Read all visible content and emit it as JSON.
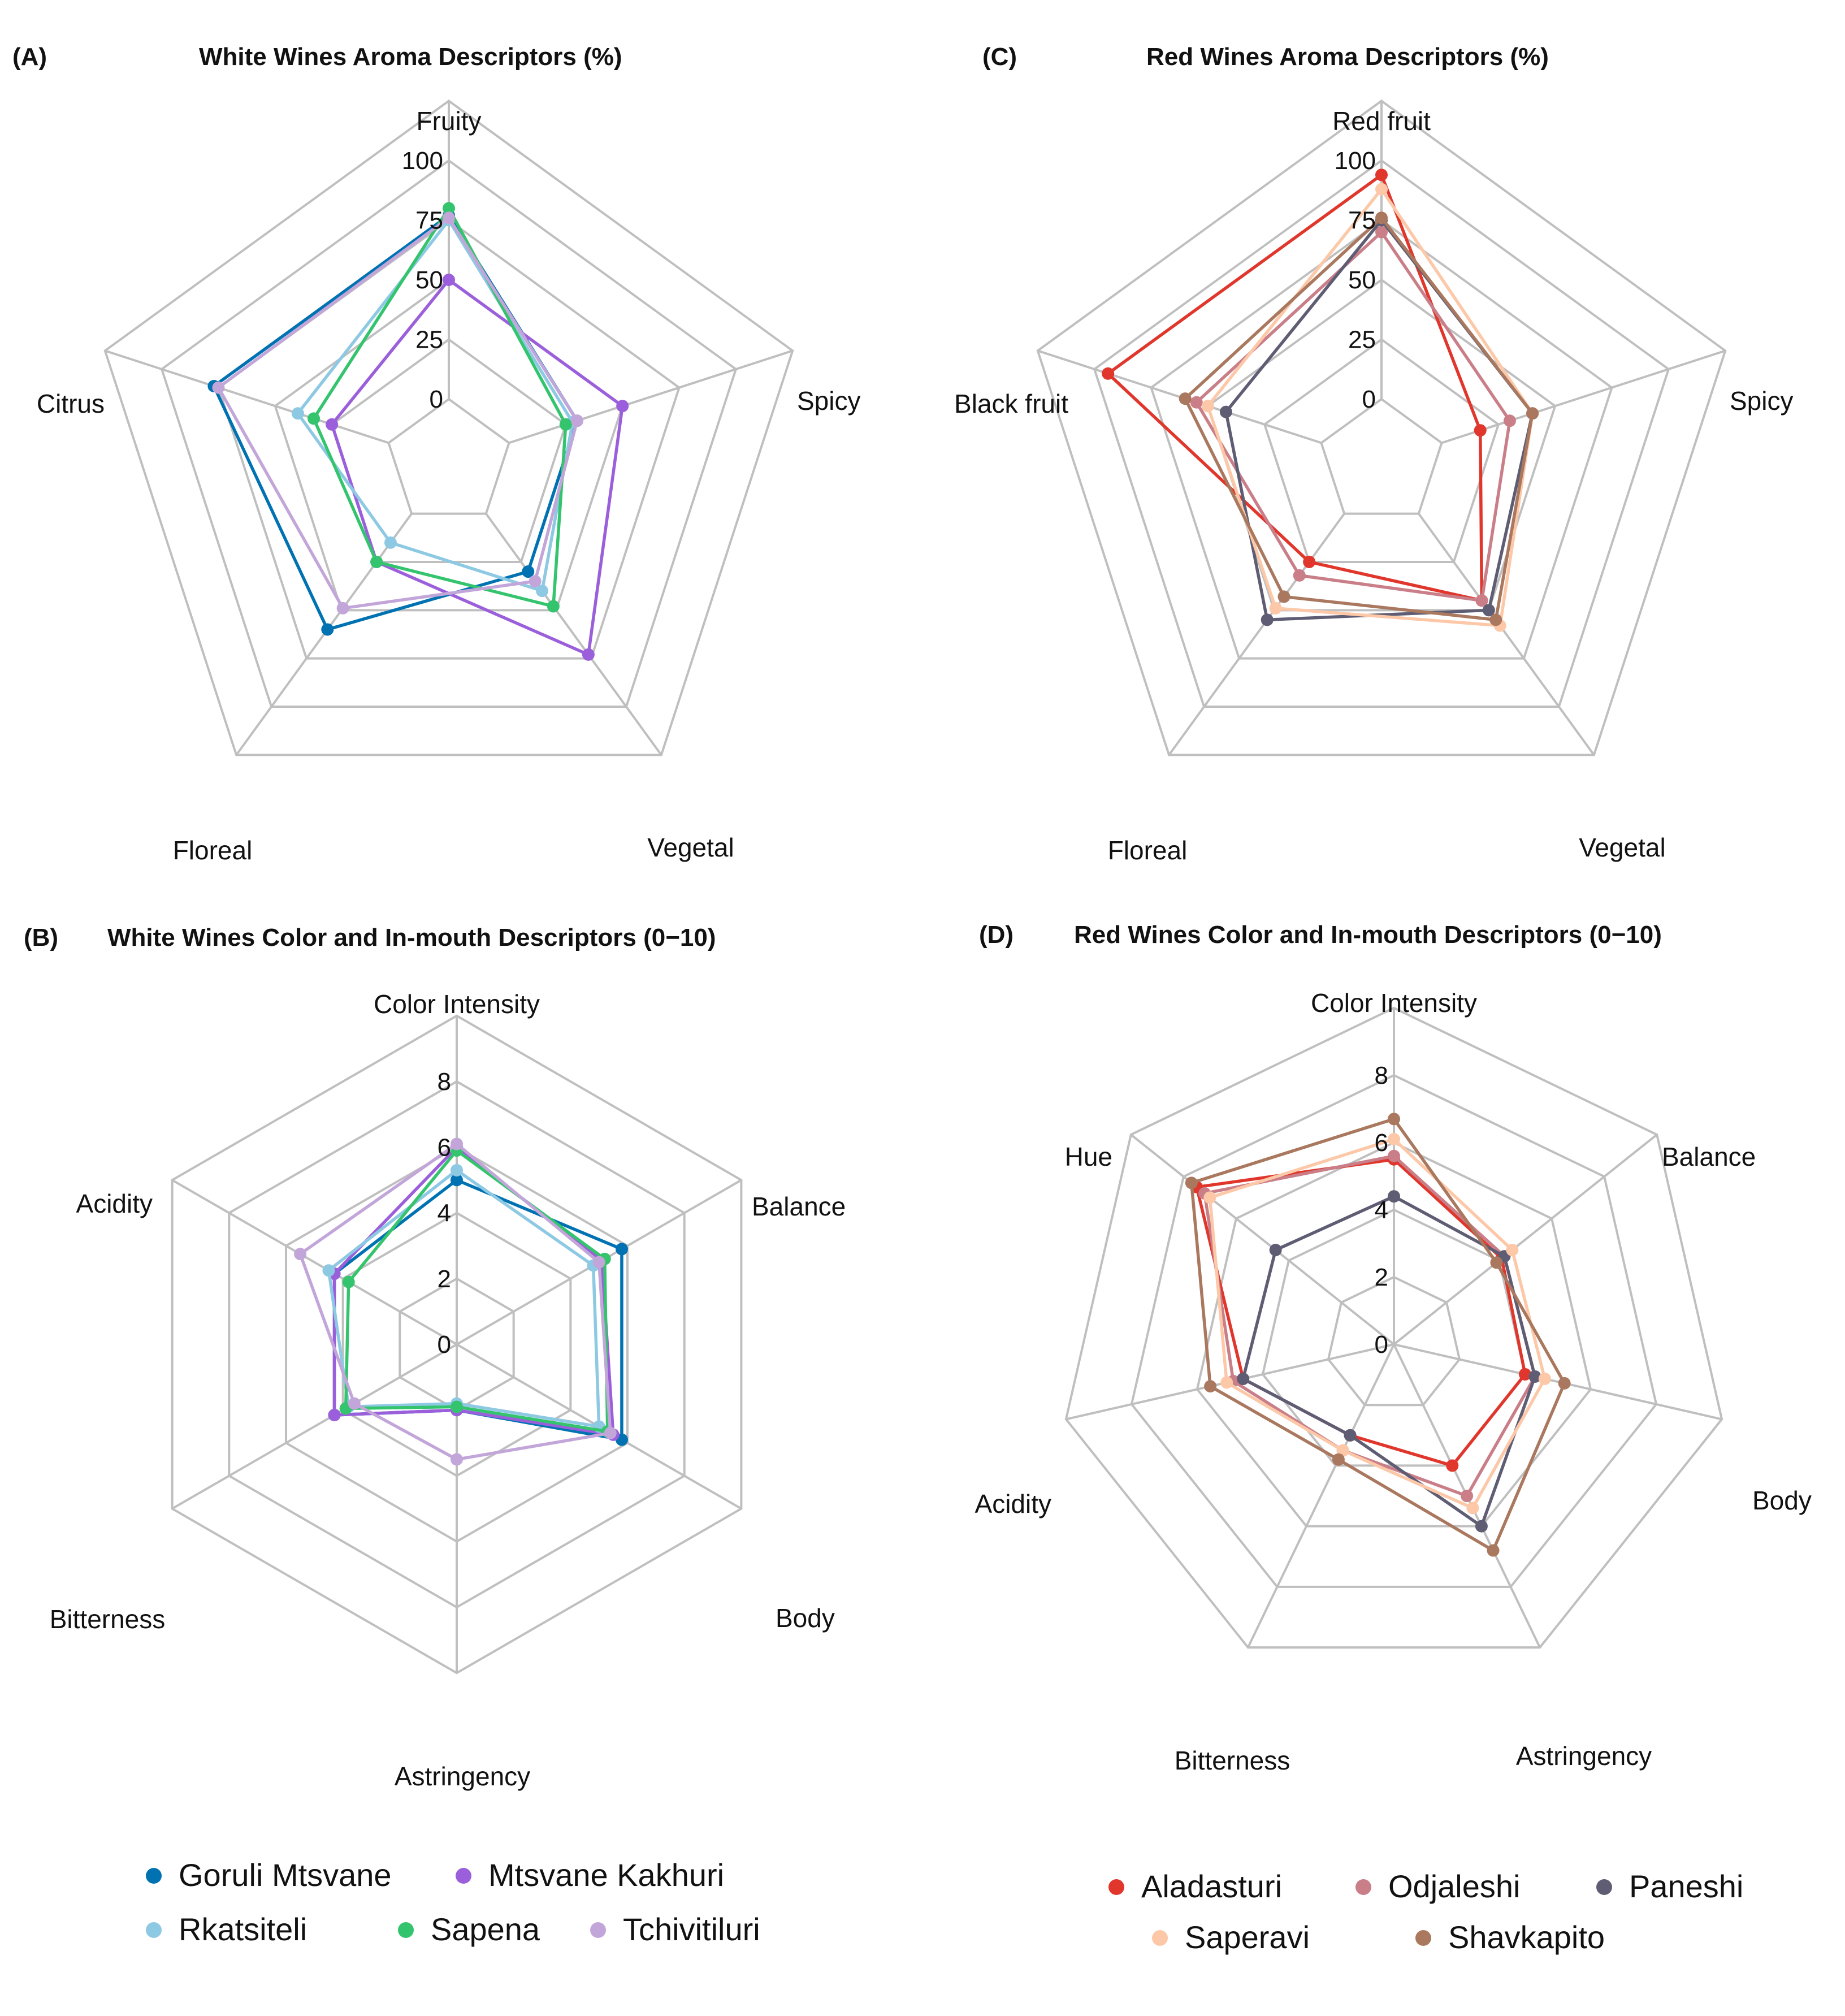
{
  "chart_data": [
    {
      "panel": "(A)",
      "type": "radar",
      "title": "White Wines Aroma Descriptors (%)",
      "axes": [
        "Fruity",
        "Spicy",
        "Vegetal",
        "Floreal",
        "Citrus"
      ],
      "ticks": [
        "0",
        "25",
        "50",
        "75",
        "100"
      ],
      "tick_values": [
        0,
        25,
        50,
        75,
        100
      ],
      "range": [
        0,
        100
      ],
      "series": [
        {
          "name": "Goruli Mtsvane",
          "color": "#0072B2",
          "values": [
            77,
            30,
            30,
            60,
            77
          ]
        },
        {
          "name": "Mtsvane Kakhuri",
          "color": "#9B5FDB",
          "values": [
            50,
            50,
            73,
            25,
            25
          ]
        },
        {
          "name": "Rkatsiteli",
          "color": "#8EC9E4",
          "values": [
            75,
            28,
            40,
            15,
            40
          ]
        },
        {
          "name": "Sapena",
          "color": "#34C46D",
          "values": [
            80,
            25,
            48,
            25,
            33
          ]
        },
        {
          "name": "Tchivitiluri",
          "color": "#C3A6D9",
          "values": [
            76,
            30,
            35,
            49,
            75
          ]
        }
      ]
    },
    {
      "panel": "(B)",
      "type": "radar",
      "title": "White Wines Color and In-mouth Descriptors (0−10)",
      "axes": [
        "Color Intensity",
        "Balance",
        "Body",
        "Astringency",
        "Bitterness",
        "Acidity"
      ],
      "ticks": [
        "0",
        "2",
        "4",
        "6",
        "8"
      ],
      "tick_values": [
        0,
        2,
        4,
        6,
        8
      ],
      "range": [
        0,
        8
      ],
      "series": [
        {
          "name": "Goruli Mtsvane",
          "color": "#0072B2",
          "values": [
            5,
            5.8,
            5.8,
            2,
            4.3,
            4.3
          ]
        },
        {
          "name": "Mtsvane Kakhuri",
          "color": "#9B5FDB",
          "values": [
            6,
            5.1,
            5.5,
            2,
            4.3,
            4.3
          ]
        },
        {
          "name": "Rkatsiteli",
          "color": "#8EC9E4",
          "values": [
            5.3,
            4.8,
            5,
            1.8,
            3.8,
            4.5
          ]
        },
        {
          "name": "Sapena",
          "color": "#34C46D",
          "values": [
            5.9,
            5.2,
            5.3,
            1.9,
            3.9,
            3.8
          ]
        },
        {
          "name": "Tchivitiluri",
          "color": "#C3A6D9",
          "values": [
            6.1,
            5,
            5.4,
            3.5,
            3.6,
            5.5
          ]
        }
      ]
    },
    {
      "panel": "(C)",
      "type": "radar",
      "title": "Red Wines Aroma Descriptors (%)",
      "axes": [
        "Red fruit",
        "Spicy",
        "Vegetal",
        "Floreal",
        "Black fruit"
      ],
      "ticks": [
        "0",
        "25",
        "50",
        "75",
        "100"
      ],
      "tick_values": [
        0,
        25,
        50,
        75,
        100
      ],
      "range": [
        0,
        100
      ],
      "series": [
        {
          "name": "Aladasturi",
          "color": "#E0362C",
          "values": [
            94,
            17,
            45,
            25,
            94
          ]
        },
        {
          "name": "Odjaleshi",
          "color": "#C97E88",
          "values": [
            70,
            30,
            45,
            32,
            55
          ]
        },
        {
          "name": "Paneshi",
          "color": "#5E5D73",
          "values": [
            75,
            40,
            50,
            55,
            42
          ]
        },
        {
          "name": "Saperavi",
          "color": "#FCC8A8",
          "values": [
            88,
            40,
            58,
            49,
            50
          ]
        },
        {
          "name": "Shavkapito",
          "color": "#A9785E",
          "values": [
            76,
            40,
            55,
            43,
            60
          ]
        }
      ]
    },
    {
      "panel": "(D)",
      "type": "radar",
      "title": "Red Wines Color and In-mouth Descriptors (0−10)",
      "axes": [
        "Color Intensity",
        "Balance",
        "Body",
        "Astringency",
        "Bitterness",
        "Acidity",
        "Hue"
      ],
      "ticks": [
        "0",
        "2",
        "4",
        "6",
        "8"
      ],
      "tick_values": [
        0,
        2,
        4,
        6,
        8
      ],
      "range": [
        0,
        8
      ],
      "series": [
        {
          "name": "Aladasturi",
          "color": "#E0362C",
          "values": [
            5.5,
            4.1,
            4,
            4,
            3,
            4.6,
            7.5
          ]
        },
        {
          "name": "Odjaleshi",
          "color": "#C97E88",
          "values": [
            5.6,
            4.2,
            4.3,
            5,
            3.5,
            4.9,
            7.2
          ]
        },
        {
          "name": "Paneshi",
          "color": "#5E5D73",
          "values": [
            4.4,
            4.2,
            4.3,
            6,
            3,
            4.6,
            4.5
          ]
        },
        {
          "name": "Saperavi",
          "color": "#FCC8A8",
          "values": [
            6.1,
            4.5,
            4.6,
            5.4,
            3.5,
            5.1,
            7
          ]
        },
        {
          "name": "Shavkapito",
          "color": "#A9785E",
          "values": [
            6.7,
            3.9,
            5.2,
            6.8,
            3.8,
            5.6,
            7.7
          ]
        }
      ]
    }
  ],
  "legends": {
    "white": [
      "Goruli Mtsvane",
      "Mtsvane Kakhuri",
      "Rkatsiteli",
      "Sapena",
      "Tchivitiluri"
    ],
    "red": [
      "Aladasturi",
      "Odjaleshi",
      "Paneshi",
      "Saperavi",
      "Shavkapito"
    ]
  }
}
